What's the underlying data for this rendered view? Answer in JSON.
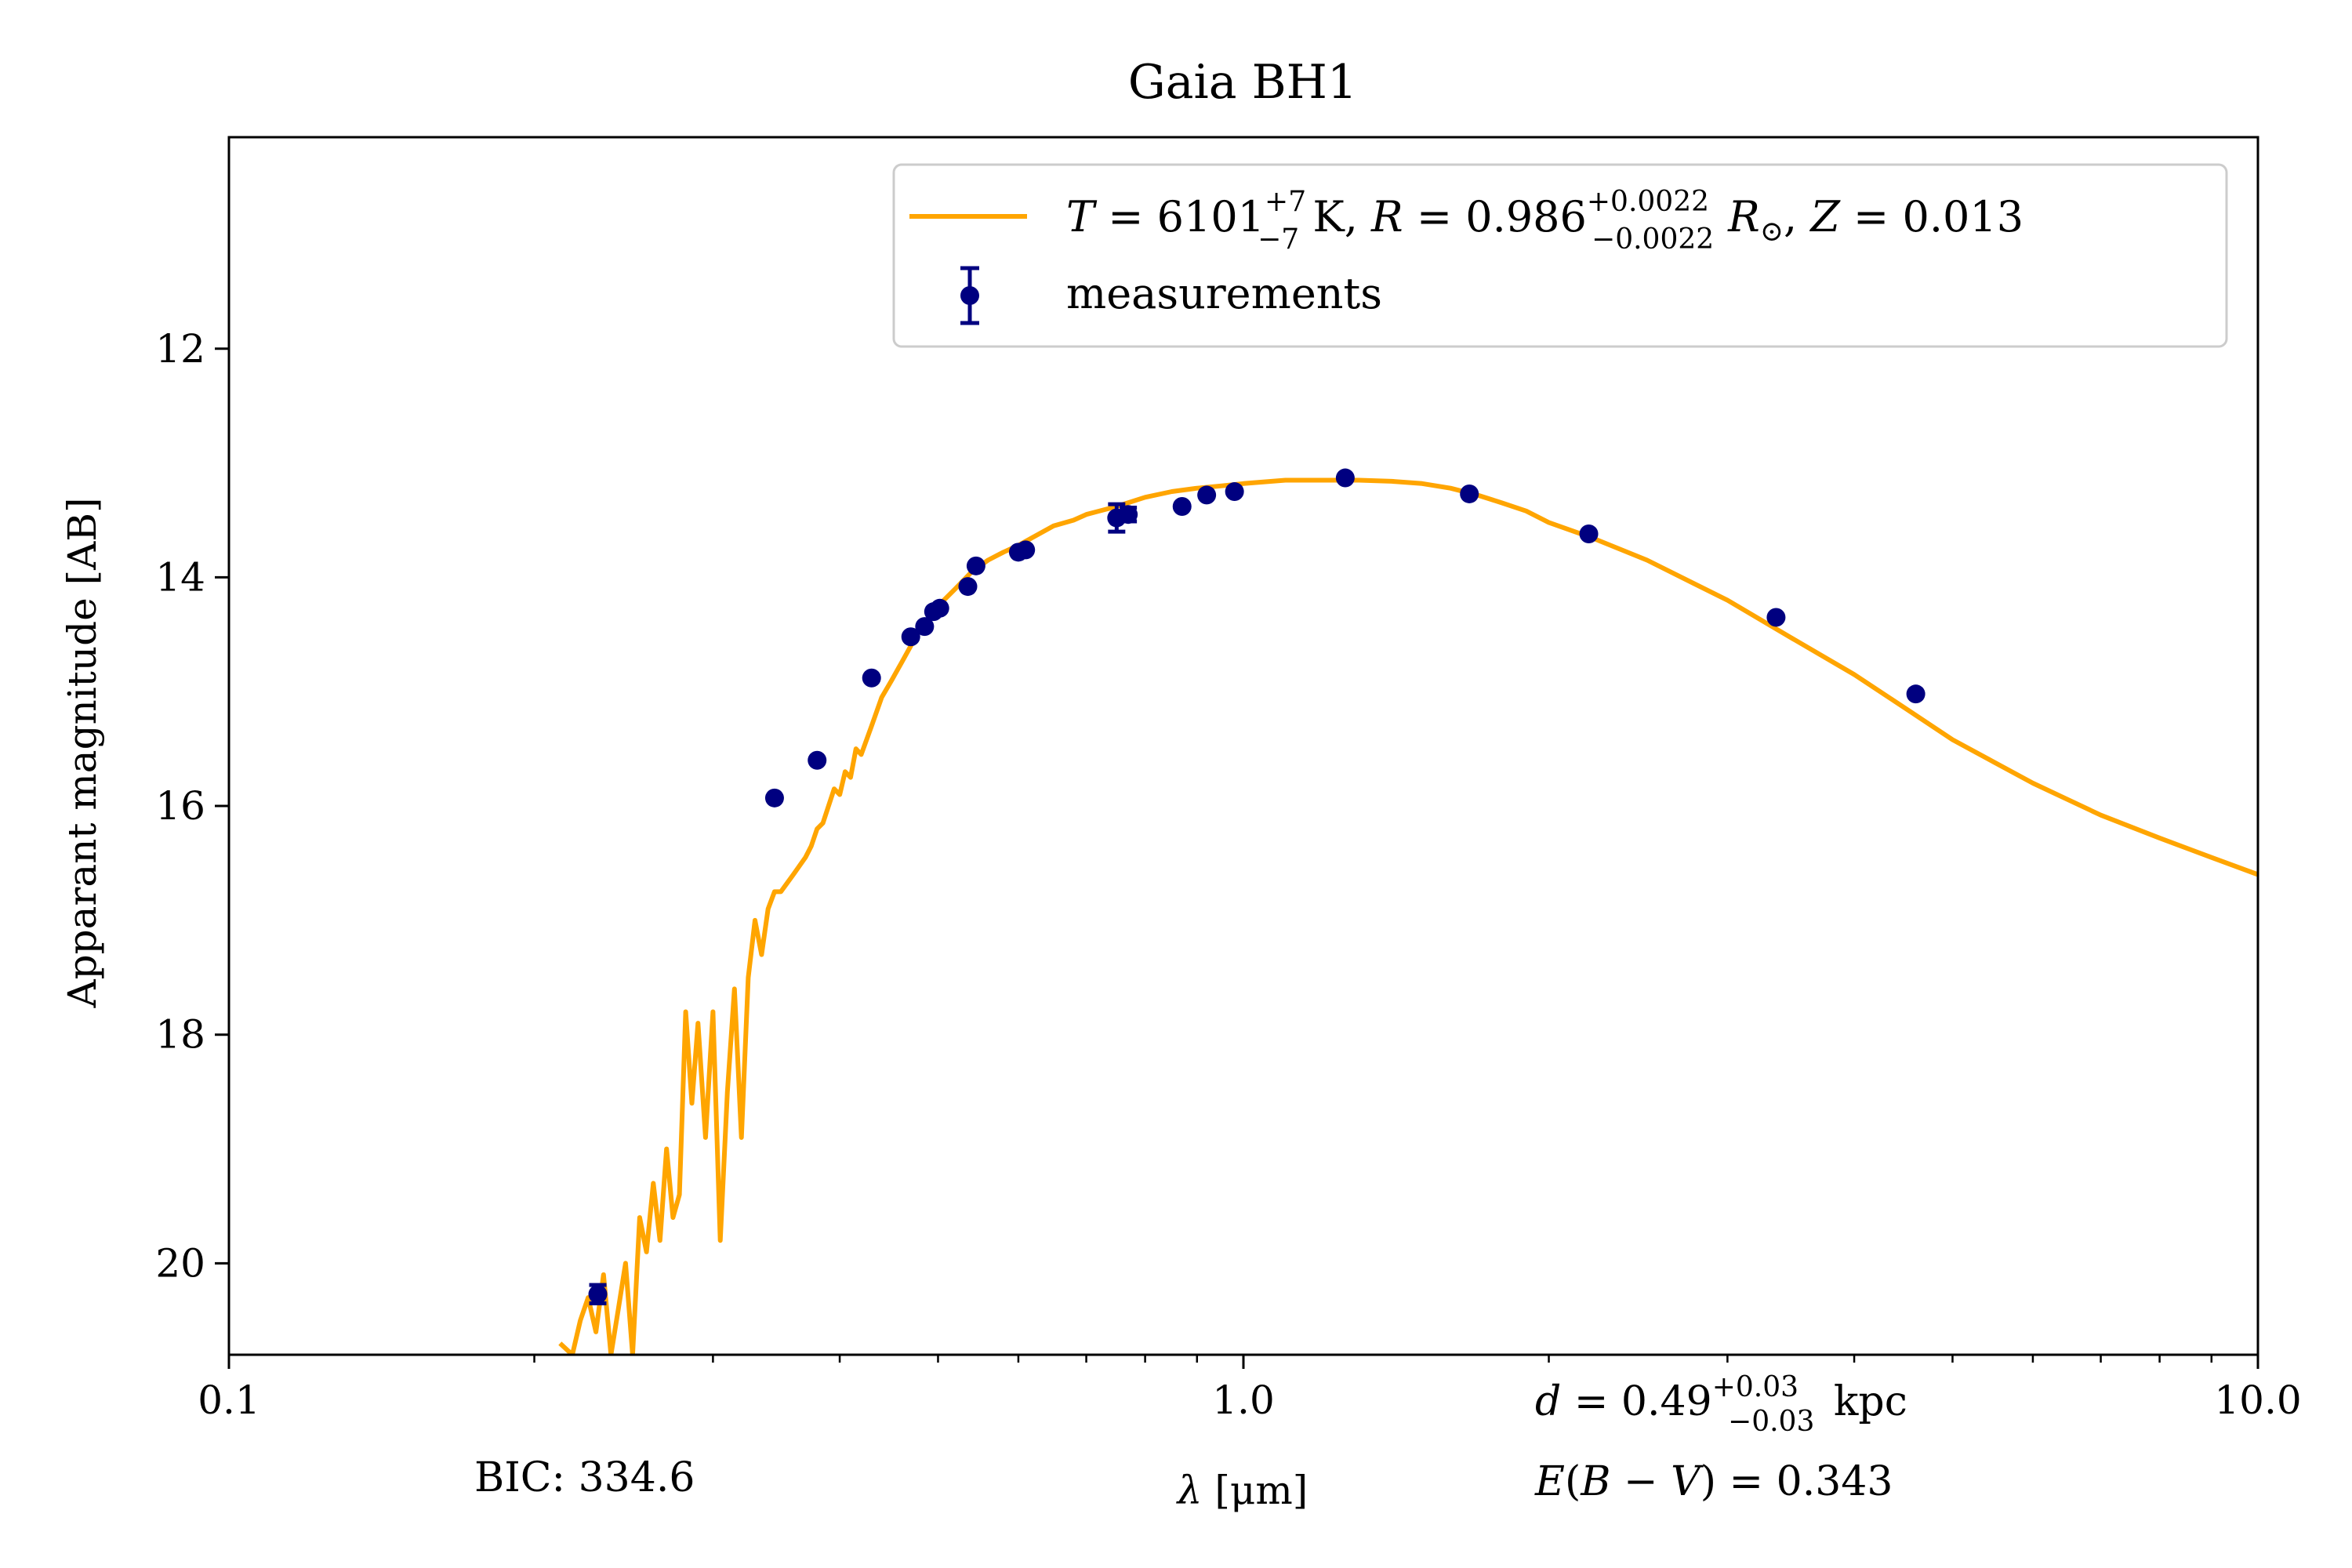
{
  "chart_data": {
    "type": "line",
    "title": "Gaia BH1",
    "xlabel_parts": {
      "lam": "λ",
      "unit": "[μm]"
    },
    "ylabel": "Apparant magnitude [AB]",
    "x_scale": "log",
    "xlim": [
      0.1,
      10.0
    ],
    "ylim": [
      20.8,
      10.15
    ],
    "y_inverted": true,
    "xtick_labels": [
      "0.1",
      "1.0",
      "10.0"
    ],
    "xticks": [
      0.1,
      1.0,
      10.0
    ],
    "yticks": [
      12,
      14,
      16,
      18,
      20
    ],
    "ytick_labels": [
      "12",
      "14",
      "16",
      "18",
      "20"
    ],
    "legend": {
      "placement": "top-right",
      "model": {
        "T": "T",
        "eq1": " = 6101",
        "T_sup": "+7",
        "T_sub": "−7",
        "T_unit": " K, ",
        "R": "R",
        "eq2": " = 0.986",
        "R_sup": "+0.0022",
        "R_sub": "−0.0022",
        "Rsun": "R",
        "sun": "⊙",
        "comma": ", ",
        "Z": "Z",
        "eq3": " = 0.013"
      },
      "measurements": "measurements"
    },
    "annotations": {
      "bic": "BIC: 334.6",
      "distance": {
        "d": "d",
        "eq": " = 0.49",
        "sup": "+0.03",
        "sub": "−0.03",
        "unit": " kpc"
      },
      "extinction": {
        "E": "E",
        "paren": "(",
        "B": "B",
        "minus": " − ",
        "V": "V",
        "close": ")",
        "eq": " = 0.343"
      }
    },
    "colors": {
      "model": "#FFA500",
      "measurements": "#000080",
      "axes": "#000000"
    },
    "series": [
      {
        "name": "model",
        "x": [
          0.212,
          0.218,
          0.222,
          0.226,
          0.23,
          0.234,
          0.238,
          0.242,
          0.246,
          0.25,
          0.254,
          0.258,
          0.262,
          0.266,
          0.27,
          0.274,
          0.278,
          0.282,
          0.286,
          0.29,
          0.295,
          0.3,
          0.305,
          0.31,
          0.315,
          0.32,
          0.325,
          0.33,
          0.335,
          0.34,
          0.345,
          0.35,
          0.36,
          0.37,
          0.375,
          0.38,
          0.385,
          0.39,
          0.395,
          0.4,
          0.405,
          0.41,
          0.415,
          0.42,
          0.43,
          0.44,
          0.45,
          0.46,
          0.47,
          0.48,
          0.49,
          0.5,
          0.52,
          0.54,
          0.56,
          0.58,
          0.6,
          0.62,
          0.65,
          0.68,
          0.7,
          0.75,
          0.8,
          0.85,
          0.9,
          0.95,
          1.0,
          1.1,
          1.2,
          1.3,
          1.4,
          1.5,
          1.6,
          1.7,
          1.8,
          1.9,
          2.0,
          2.2,
          2.5,
          3.0,
          3.5,
          4.0,
          4.5,
          5.0,
          6.0,
          7.0,
          8.0,
          9.0,
          10.0
        ],
        "y": [
          20.7,
          20.8,
          20.5,
          20.3,
          20.6,
          20.1,
          20.8,
          20.4,
          20.0,
          20.8,
          19.6,
          19.9,
          19.3,
          19.8,
          19.0,
          19.6,
          19.4,
          17.8,
          18.6,
          17.9,
          18.9,
          17.8,
          19.8,
          18.5,
          17.6,
          18.9,
          17.5,
          17.0,
          17.3,
          16.9,
          16.75,
          16.75,
          16.6,
          16.45,
          16.35,
          16.2,
          16.15,
          16.0,
          15.85,
          15.9,
          15.7,
          15.75,
          15.5,
          15.55,
          15.3,
          15.05,
          14.9,
          14.75,
          14.6,
          14.45,
          14.35,
          14.25,
          14.1,
          13.95,
          13.85,
          13.78,
          13.72,
          13.65,
          13.55,
          13.5,
          13.45,
          13.38,
          13.3,
          13.25,
          13.22,
          13.2,
          13.18,
          13.15,
          13.15,
          13.15,
          13.16,
          13.18,
          13.22,
          13.28,
          13.35,
          13.42,
          13.52,
          13.65,
          13.85,
          14.2,
          14.55,
          14.85,
          15.15,
          15.42,
          15.8,
          16.08,
          16.28,
          16.45,
          16.6
        ]
      },
      {
        "name": "measurements",
        "x": [
          0.231,
          0.345,
          0.38,
          0.43,
          0.47,
          0.485,
          0.495,
          0.502,
          0.535,
          0.545,
          0.6,
          0.61,
          0.75,
          0.77,
          0.87,
          0.92,
          0.98,
          1.26,
          1.67,
          2.19,
          3.35,
          4.6
        ],
        "y": [
          20.27,
          15.93,
          15.6,
          14.88,
          14.52,
          14.43,
          14.3,
          14.27,
          14.08,
          13.9,
          13.78,
          13.76,
          13.48,
          13.45,
          13.38,
          13.28,
          13.25,
          13.13,
          13.27,
          13.62,
          14.35,
          15.02
        ],
        "yerr": [
          0.08,
          0.02,
          0.02,
          0.02,
          0.02,
          0.02,
          0.02,
          0.02,
          0.02,
          0.02,
          0.02,
          0.02,
          0.12,
          0.06,
          0.02,
          0.02,
          0.02,
          0.02,
          0.02,
          0.02,
          0.02,
          0.02
        ]
      }
    ]
  }
}
